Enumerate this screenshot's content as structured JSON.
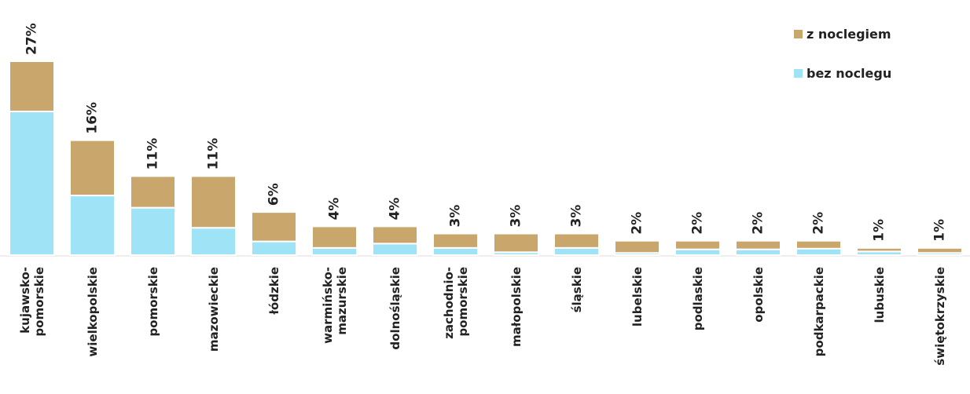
{
  "chart_data": {
    "type": "stacked_bar",
    "categories": [
      "kujawsko-pomorskie",
      "wielkopolskie",
      "pomorskie",
      "mazowieckie",
      "łódzkie",
      "warmińsko-mazurskie",
      "dolnośląskie",
      "zachodnio-pomorskie",
      "małopolskie",
      "śląskie",
      "lubelskie",
      "podlaskie",
      "opolskie",
      "podkarpackie",
      "lubuskie",
      "świętokrzyskie"
    ],
    "series": [
      {
        "name": "bez noclegu",
        "color": "#9ee3f6",
        "values": [
          20,
          8.3,
          6.6,
          3.8,
          1.9,
          1,
          1.6,
          1,
          0.4,
          1,
          0.3,
          0.8,
          0.8,
          0.9,
          0.5,
          0.3
        ]
      },
      {
        "name": "z noclegiem",
        "color": "#c9a66b",
        "values": [
          7,
          7.7,
          4.4,
          7.2,
          4.1,
          3,
          2.4,
          2,
          2.6,
          2,
          1.7,
          1.2,
          1.2,
          1.1,
          0.5,
          0.7
        ]
      }
    ],
    "totals": [
      27,
      16,
      11,
      11,
      6,
      4,
      4,
      3,
      3,
      3,
      2,
      2,
      2,
      2,
      1,
      1
    ],
    "total_labels": [
      "27%",
      "16%",
      "11%",
      "11%",
      "6%",
      "4%",
      "4%",
      "3%",
      "3%",
      "3%",
      "2%",
      "2%",
      "2%",
      "2%",
      "1%",
      "1%"
    ],
    "ylim": [
      0,
      27
    ]
  }
}
